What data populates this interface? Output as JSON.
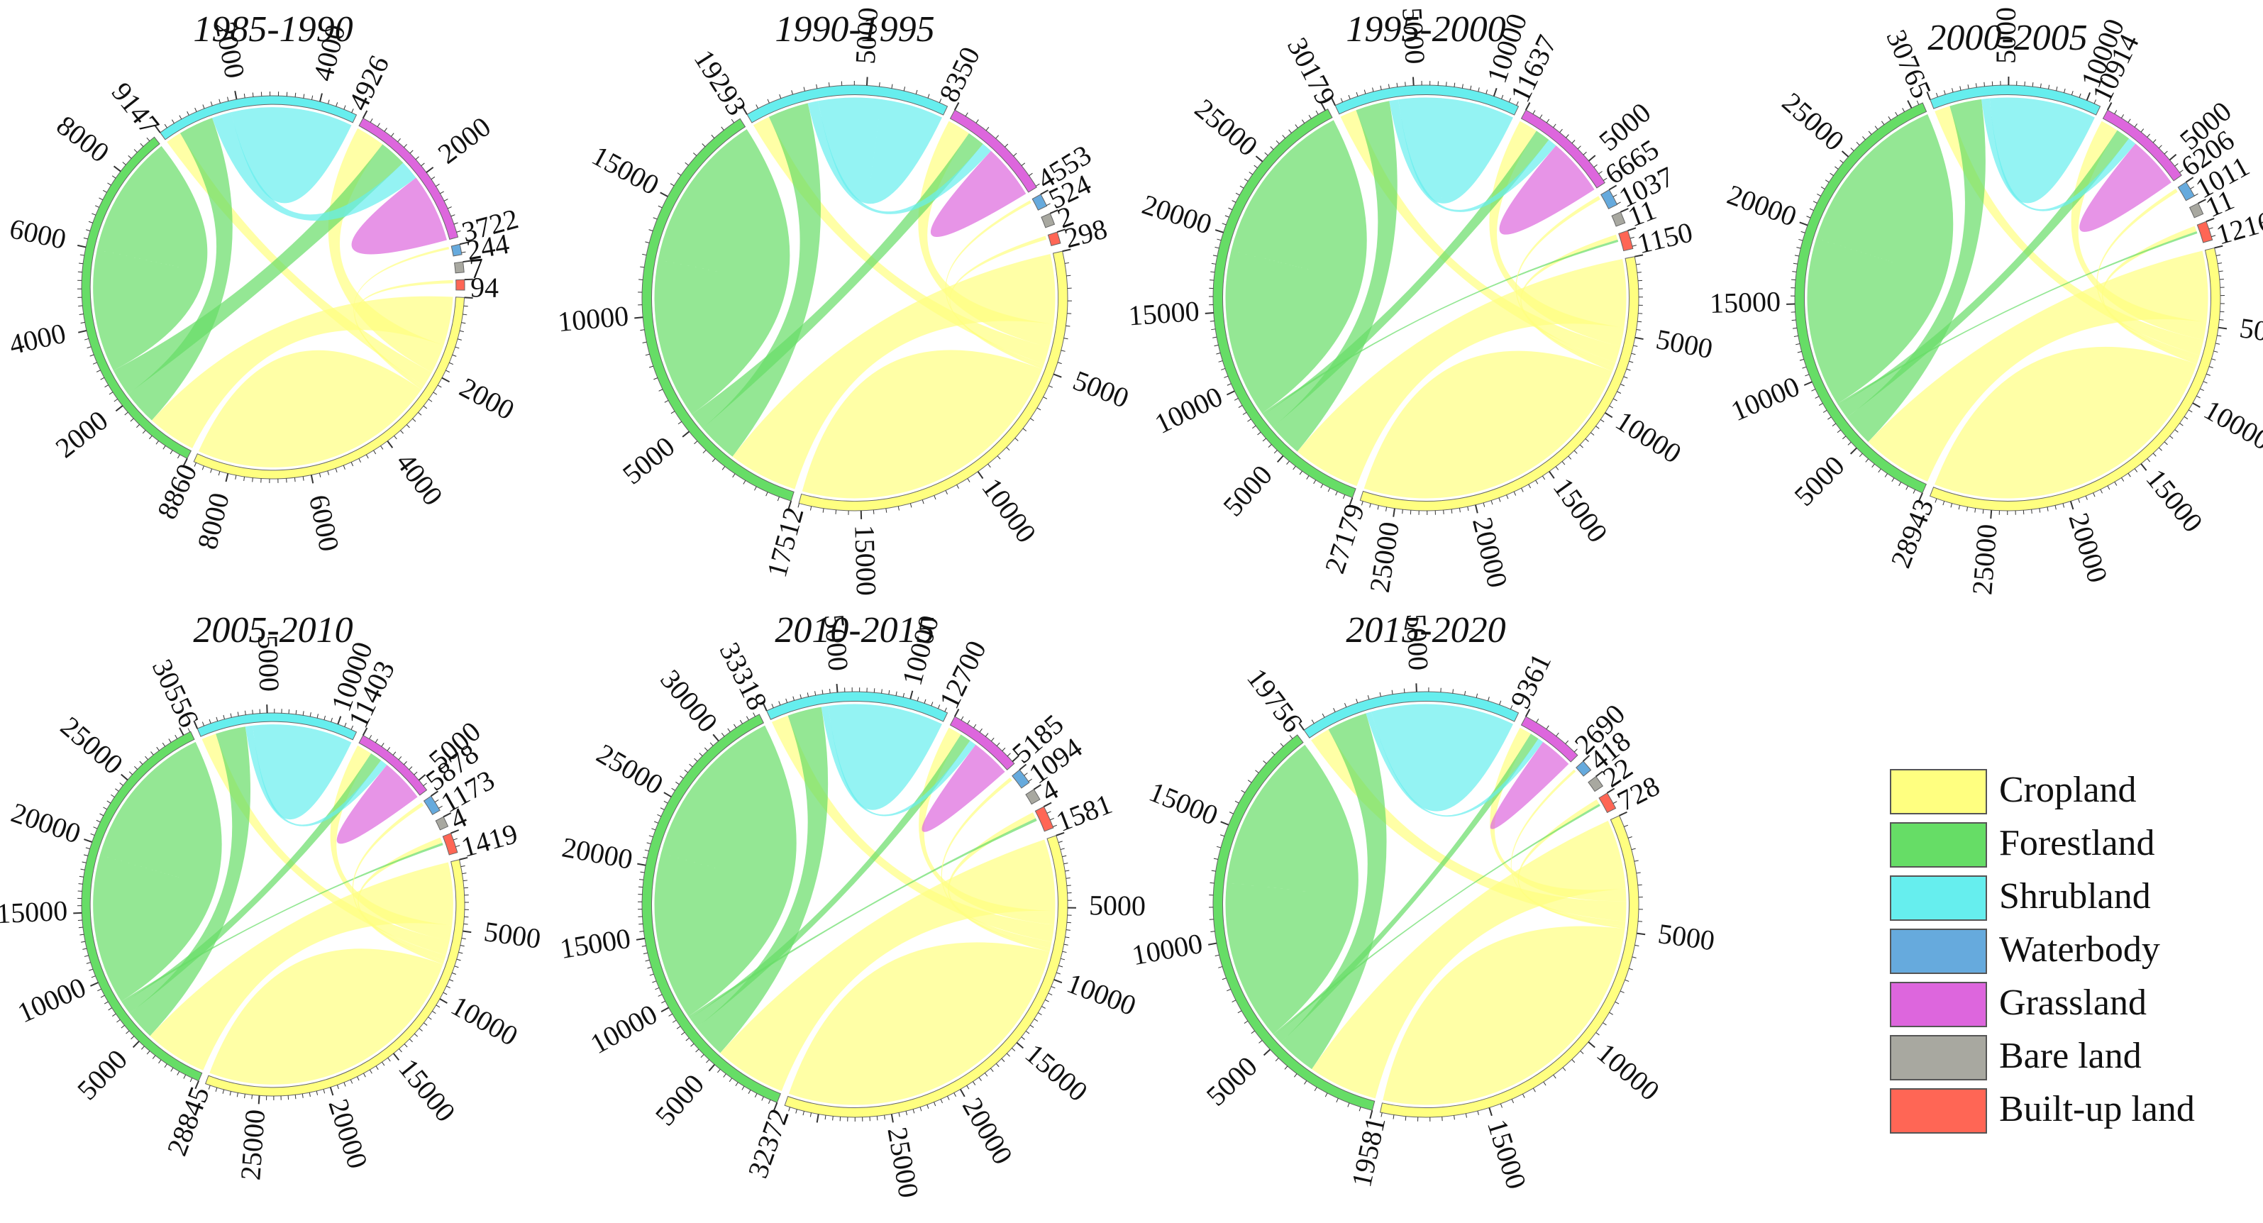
{
  "categories": [
    "Cropland",
    "Forestland",
    "Shrubland",
    "Waterbody",
    "Grassland",
    "Bare land",
    "Built-up land"
  ],
  "colors": {
    "Cropland": "#ffff80",
    "Forestland": "#66dd66",
    "Shrubland": "#66eeee",
    "Waterbody": "#66aadd",
    "Grassland": "#dd66dd",
    "Bare land": "#a8a8a0",
    "Built-up land": "#ff6655"
  },
  "legend": {
    "items": [
      {
        "label": "Cropland",
        "color": "#ffff80"
      },
      {
        "label": "Forestland",
        "color": "#66dd66"
      },
      {
        "label": "Shrubland",
        "color": "#66eeee"
      },
      {
        "label": "Waterbody",
        "color": "#66aadd"
      },
      {
        "label": "Grassland",
        "color": "#dd66dd"
      },
      {
        "label": "Bare land",
        "color": "#a8a8a0"
      },
      {
        "label": "Built-up land",
        "color": "#ff6655"
      }
    ]
  },
  "chart_data": [
    {
      "type": "chord",
      "title": "1985-1990",
      "totals": {
        "Cropland": 8860,
        "Forestland": 9147,
        "Shrubland": 4926,
        "Waterbody": 244,
        "Grassland": 3722,
        "Bare land": 7,
        "Built-up land": 94
      },
      "tick_step": 2000,
      "flows": [
        [
          "Cropland",
          "Forestland",
          2500
        ],
        [
          "Cropland",
          "Grassland",
          1500
        ],
        [
          "Cropland",
          "Shrubland",
          800
        ],
        [
          "Forestland",
          "Shrubland",
          1800
        ],
        [
          "Forestland",
          "Grassland",
          1400
        ],
        [
          "Shrubland",
          "Grassland",
          1000
        ],
        [
          "Cropland",
          "Built-up land",
          60
        ],
        [
          "Cropland",
          "Waterbody",
          120
        ]
      ]
    },
    {
      "type": "chord",
      "title": "1990-1995",
      "totals": {
        "Cropland": 17512,
        "Forestland": 19293,
        "Shrubland": 8350,
        "Waterbody": 524,
        "Grassland": 4553,
        "Bare land": 2,
        "Built-up land": 298
      },
      "tick_step": 5000,
      "flows": [
        [
          "Cropland",
          "Forestland",
          6000
        ],
        [
          "Cropland",
          "Grassland",
          2000
        ],
        [
          "Cropland",
          "Shrubland",
          1500
        ],
        [
          "Forestland",
          "Shrubland",
          3500
        ],
        [
          "Forestland",
          "Grassland",
          1500
        ],
        [
          "Shrubland",
          "Grassland",
          900
        ],
        [
          "Cropland",
          "Built-up land",
          200
        ],
        [
          "Cropland",
          "Waterbody",
          250
        ]
      ]
    },
    {
      "type": "chord",
      "title": "1995-2000",
      "totals": {
        "Cropland": 27179,
        "Forestland": 30179,
        "Shrubland": 11637,
        "Waterbody": 1037,
        "Grassland": 6665,
        "Bare land": 11,
        "Built-up land": 1150
      },
      "tick_step": 5000,
      "flows": [
        [
          "Cropland",
          "Forestland",
          9000
        ],
        [
          "Cropland",
          "Grassland",
          2500
        ],
        [
          "Cropland",
          "Shrubland",
          2200
        ],
        [
          "Forestland",
          "Shrubland",
          4500
        ],
        [
          "Forestland",
          "Grassland",
          2000
        ],
        [
          "Shrubland",
          "Grassland",
          1200
        ],
        [
          "Cropland",
          "Built-up land",
          700
        ],
        [
          "Forestland",
          "Built-up land",
          300
        ],
        [
          "Cropland",
          "Waterbody",
          500
        ]
      ]
    },
    {
      "type": "chord",
      "title": "2000-2005",
      "totals": {
        "Cropland": 28943,
        "Forestland": 30765,
        "Shrubland": 10914,
        "Waterbody": 1011,
        "Grassland": 6206,
        "Bare land": 11,
        "Built-up land": 1216
      },
      "tick_step": 5000,
      "flows": [
        [
          "Cropland",
          "Forestland",
          9500
        ],
        [
          "Cropland",
          "Grassland",
          2400
        ],
        [
          "Cropland",
          "Shrubland",
          2100
        ],
        [
          "Forestland",
          "Shrubland",
          4300
        ],
        [
          "Forestland",
          "Grassland",
          1900
        ],
        [
          "Shrubland",
          "Grassland",
          1100
        ],
        [
          "Cropland",
          "Built-up land",
          750
        ],
        [
          "Forestland",
          "Built-up land",
          300
        ],
        [
          "Cropland",
          "Waterbody",
          480
        ]
      ]
    },
    {
      "type": "chord",
      "title": "2005-2010",
      "totals": {
        "Cropland": 28845,
        "Forestland": 30556,
        "Shrubland": 11403,
        "Waterbody": 1173,
        "Grassland": 5878,
        "Bare land": 4,
        "Built-up land": 1419
      },
      "tick_step": 5000,
      "flows": [
        [
          "Cropland",
          "Forestland",
          9400
        ],
        [
          "Cropland",
          "Grassland",
          2300
        ],
        [
          "Cropland",
          "Shrubland",
          2200
        ],
        [
          "Forestland",
          "Shrubland",
          4500
        ],
        [
          "Forestland",
          "Grassland",
          1800
        ],
        [
          "Shrubland",
          "Grassland",
          1100
        ],
        [
          "Cropland",
          "Built-up land",
          850
        ],
        [
          "Forestland",
          "Built-up land",
          350
        ],
        [
          "Cropland",
          "Waterbody",
          550
        ]
      ]
    },
    {
      "type": "chord",
      "title": "2010-2015",
      "totals": {
        "Cropland": 32372,
        "Forestland": 33318,
        "Shrubland": 12700,
        "Waterbody": 1094,
        "Grassland": 5185,
        "Bare land": 4,
        "Built-up land": 1581
      },
      "tick_step": 5000,
      "flows": [
        [
          "Cropland",
          "Forestland",
          10500
        ],
        [
          "Cropland",
          "Grassland",
          2000
        ],
        [
          "Cropland",
          "Shrubland",
          2500
        ],
        [
          "Forestland",
          "Shrubland",
          5000
        ],
        [
          "Forestland",
          "Grassland",
          1600
        ],
        [
          "Shrubland",
          "Grassland",
          1000
        ],
        [
          "Cropland",
          "Built-up land",
          950
        ],
        [
          "Forestland",
          "Built-up land",
          400
        ],
        [
          "Cropland",
          "Waterbody",
          500
        ]
      ]
    },
    {
      "type": "chord",
      "title": "2015-2020",
      "totals": {
        "Cropland": 19581,
        "Forestland": 19756,
        "Shrubland": 9361,
        "Waterbody": 418,
        "Grassland": 2690,
        "Bare land": 22,
        "Built-up land": 728
      },
      "tick_step": 5000,
      "flows": [
        [
          "Cropland",
          "Forestland",
          6200
        ],
        [
          "Cropland",
          "Grassland",
          1100
        ],
        [
          "Cropland",
          "Shrubland",
          1800
        ],
        [
          "Forestland",
          "Shrubland",
          3600
        ],
        [
          "Forestland",
          "Grassland",
          800
        ],
        [
          "Shrubland",
          "Grassland",
          500
        ],
        [
          "Cropland",
          "Built-up land",
          450
        ],
        [
          "Forestland",
          "Built-up land",
          200
        ],
        [
          "Cropland",
          "Waterbody",
          200
        ]
      ]
    }
  ]
}
